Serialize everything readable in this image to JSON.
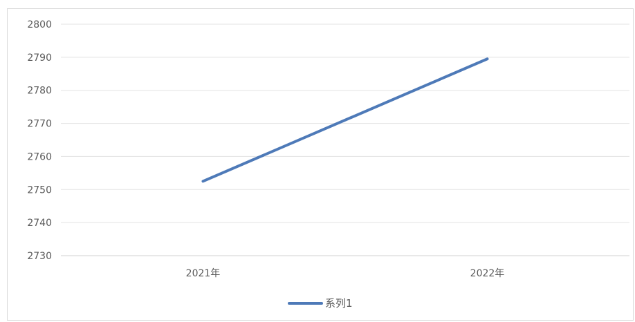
{
  "chart_data": {
    "type": "line",
    "categories": [
      "2021年",
      "2022年"
    ],
    "series": [
      {
        "name": "系列1",
        "values": [
          2752.5,
          2789.5
        ],
        "color": "#4e7ab8"
      }
    ],
    "ylim": [
      2730,
      2800
    ],
    "yticks": [
      2730,
      2740,
      2750,
      2760,
      2770,
      2780,
      2790,
      2800
    ],
    "grid": true,
    "legend_position": "bottom"
  }
}
